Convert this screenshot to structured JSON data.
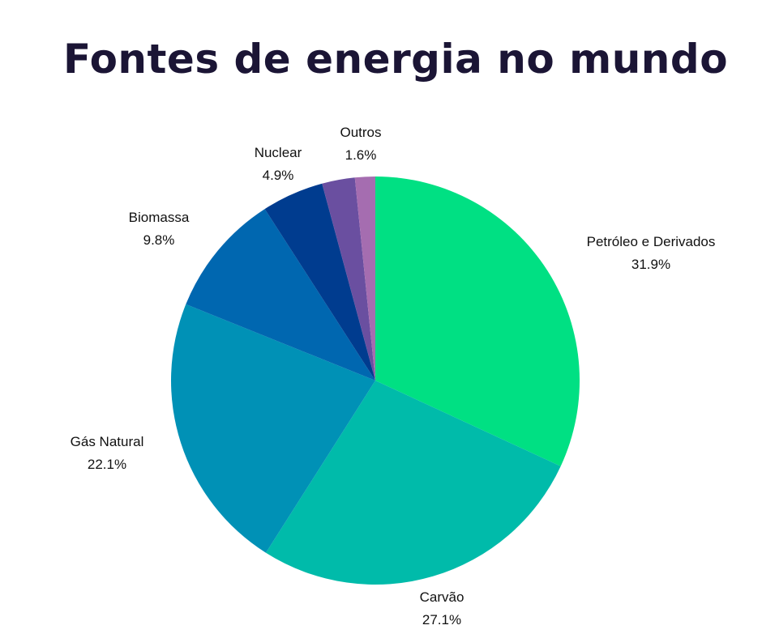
{
  "chart_data": {
    "type": "pie",
    "title": "Fontes de energia no mundo",
    "start": "top",
    "direction": "clockwise",
    "slices": [
      {
        "label": "Petróleo e Derivados",
        "value": 31.9,
        "value_label": "31.9%",
        "color": "#00E083"
      },
      {
        "label": "Carvão",
        "value": 27.1,
        "value_label": "27.1%",
        "color": "#00BBAA"
      },
      {
        "label": "Gás Natural",
        "value": 22.1,
        "value_label": "22.1%",
        "color": "#0091B6"
      },
      {
        "label": "Biomassa",
        "value": 9.8,
        "value_label": "9.8%",
        "color": "#0067B0"
      },
      {
        "label": "Nuclear",
        "value": 4.9,
        "value_label": "4.9%",
        "color": "#003C8F"
      },
      {
        "label": "",
        "value": 2.6,
        "value_label": "",
        "color": "#6A4FA0"
      },
      {
        "label": "Outros",
        "value": 1.6,
        "value_label": "1.6%",
        "color": "#A56DB0"
      }
    ]
  }
}
